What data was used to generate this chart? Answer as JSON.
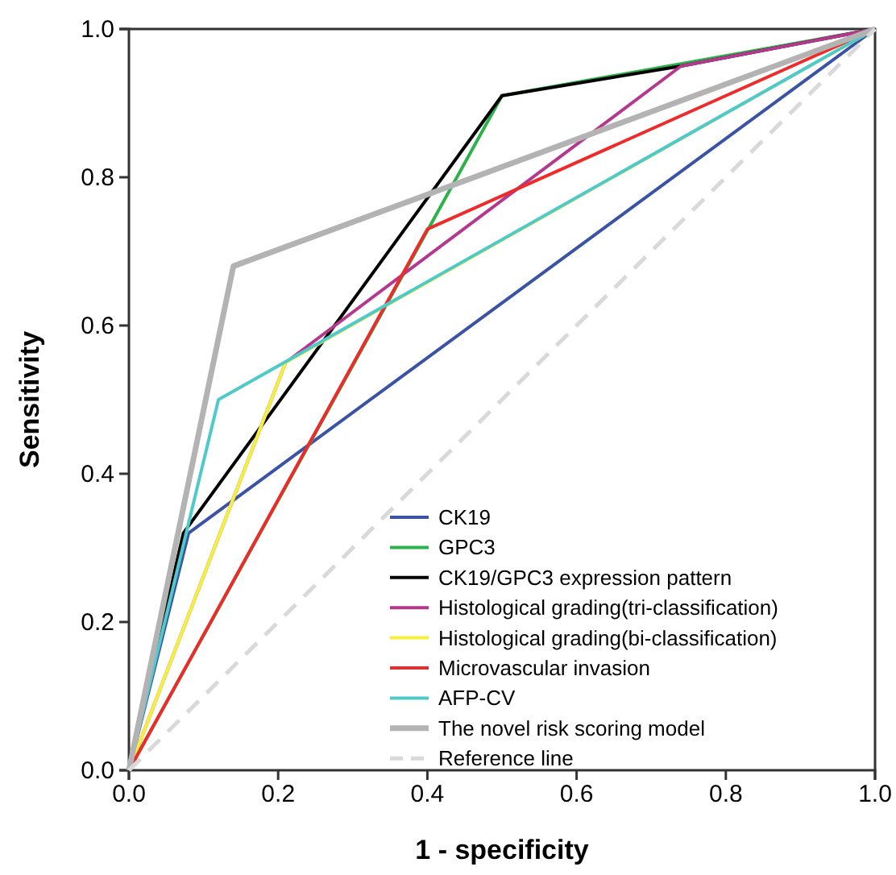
{
  "chart_data": {
    "type": "line",
    "xlabel": "1 - specificity",
    "ylabel": "Sensitivity",
    "xlim": [
      0,
      1
    ],
    "ylim": [
      0,
      1
    ],
    "xticks": [
      {
        "value": 0,
        "label": "0.0"
      },
      {
        "value": 0.2,
        "label": "0.2"
      },
      {
        "value": 0.4,
        "label": "0.4"
      },
      {
        "value": 0.6,
        "label": "0.6"
      },
      {
        "value": 0.8,
        "label": "0.8"
      },
      {
        "value": 1,
        "label": "1.0"
      }
    ],
    "yticks": [
      {
        "value": 0,
        "label": "0.0"
      },
      {
        "value": 0.2,
        "label": "0.2"
      },
      {
        "value": 0.4,
        "label": "0.4"
      },
      {
        "value": 0.6,
        "label": "0.6"
      },
      {
        "value": 0.8,
        "label": "0.8"
      },
      {
        "value": 1,
        "label": "1.0"
      }
    ],
    "grid": false,
    "legend": "bottom right",
    "marker": "none",
    "series": [
      {
        "name": "CK19",
        "color": "#3a53a4",
        "x": [
          0,
          0.08,
          1
        ],
        "values": [
          0,
          0.32,
          1
        ]
      },
      {
        "name": "GPC3",
        "color": "#2bb34a",
        "x": [
          0,
          0.5,
          1
        ],
        "values": [
          0,
          0.91,
          1
        ]
      },
      {
        "name": "CK19/GPC3 expression pattern",
        "color": "#000000",
        "x": [
          0,
          0.073,
          0.5,
          0.74,
          1
        ],
        "values": [
          0,
          0.32,
          0.91,
          0.95,
          1
        ]
      },
      {
        "name": "Histological grading(tri-classification)",
        "color": "#b5388e",
        "x": [
          0,
          0.21,
          0.74,
          1
        ],
        "values": [
          0,
          0.55,
          0.95,
          1
        ]
      },
      {
        "name": "Histological grading(bi-classification)",
        "color": "#f5f03c",
        "x": [
          0,
          0.21,
          1
        ],
        "values": [
          0,
          0.55,
          1
        ]
      },
      {
        "name": "Microvascular invasion",
        "color": "#ee2b2b",
        "x": [
          0,
          0.4,
          1
        ],
        "values": [
          0,
          0.73,
          1
        ]
      },
      {
        "name": "AFP-CV",
        "color": "#4fc9c9",
        "x": [
          0,
          0.12,
          1
        ],
        "values": [
          0,
          0.5,
          1
        ]
      },
      {
        "name": "The novel risk scoring model",
        "color": "#b3b3b3",
        "x": [
          0,
          0.14,
          1
        ],
        "values": [
          0,
          0.68,
          1
        ]
      },
      {
        "name": "Reference line",
        "color": "#d9d9d9",
        "line_style": "dashed",
        "x": [
          0,
          1
        ],
        "values": [
          0,
          1
        ]
      }
    ]
  }
}
